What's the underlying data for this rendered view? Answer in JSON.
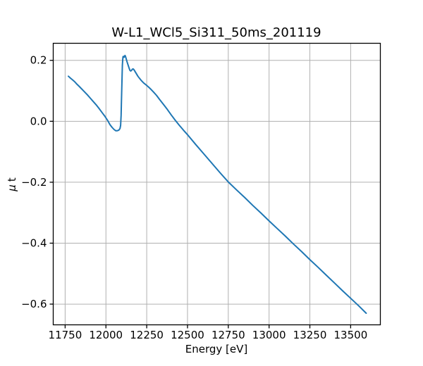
{
  "chart_data": {
    "type": "line",
    "title": "W-L1_WCl5_Si311_50ms_201119",
    "xlabel": "Energy [eV]",
    "ylabel": "μ t",
    "ylabel_symbol": "μ",
    "ylabel_suffix": "t",
    "xlim": [
      11677,
      13682
    ],
    "ylim": [
      -0.668,
      0.256
    ],
    "xticks": [
      11750,
      12000,
      12250,
      12500,
      12750,
      13000,
      13250,
      13500
    ],
    "xtick_labels": [
      "11750",
      "12000",
      "12250",
      "12500",
      "12750",
      "13000",
      "13250",
      "13500"
    ],
    "yticks": [
      0.2,
      0.0,
      -0.2,
      -0.4,
      -0.6
    ],
    "ytick_labels": [
      "0.2",
      "0.0",
      "−0.2",
      "−0.4",
      "−0.6"
    ],
    "grid": true,
    "legend_position": "none",
    "line_color": "#1f77b4",
    "grid_color": "#b0b0b0",
    "axis_color": "#000000",
    "background_color": "#ffffff",
    "series": [
      {
        "name": "mu_t_vs_energy",
        "points": [
          [
            11770,
            0.148
          ],
          [
            11782,
            0.142
          ],
          [
            11795,
            0.136
          ],
          [
            11808,
            0.13
          ],
          [
            11820,
            0.123
          ],
          [
            11835,
            0.115
          ],
          [
            11850,
            0.107
          ],
          [
            11868,
            0.097
          ],
          [
            11886,
            0.087
          ],
          [
            11904,
            0.076
          ],
          [
            11922,
            0.065
          ],
          [
            11940,
            0.054
          ],
          [
            11958,
            0.042
          ],
          [
            11976,
            0.029
          ],
          [
            11994,
            0.016
          ],
          [
            12010,
            0.003
          ],
          [
            12025,
            -0.011
          ],
          [
            12038,
            -0.02
          ],
          [
            12050,
            -0.027
          ],
          [
            12060,
            -0.031
          ],
          [
            12070,
            -0.031
          ],
          [
            12079,
            -0.029
          ],
          [
            12086,
            -0.024
          ],
          [
            12090,
            -0.013
          ],
          [
            12093,
            0.02
          ],
          [
            12095,
            0.06
          ],
          [
            12097,
            0.105
          ],
          [
            12099,
            0.15
          ],
          [
            12101,
            0.185
          ],
          [
            12103,
            0.203
          ],
          [
            12105,
            0.212
          ],
          [
            12108,
            0.213
          ],
          [
            12111,
            0.21
          ],
          [
            12114,
            0.212
          ],
          [
            12117,
            0.216
          ],
          [
            12120,
            0.213
          ],
          [
            12124,
            0.206
          ],
          [
            12129,
            0.196
          ],
          [
            12135,
            0.186
          ],
          [
            12141,
            0.176
          ],
          [
            12147,
            0.167
          ],
          [
            12152,
            0.165
          ],
          [
            12157,
            0.167
          ],
          [
            12162,
            0.171
          ],
          [
            12167,
            0.172
          ],
          [
            12172,
            0.169
          ],
          [
            12179,
            0.163
          ],
          [
            12187,
            0.156
          ],
          [
            12196,
            0.148
          ],
          [
            12206,
            0.141
          ],
          [
            12218,
            0.133
          ],
          [
            12231,
            0.126
          ],
          [
            12245,
            0.12
          ],
          [
            12260,
            0.113
          ],
          [
            12276,
            0.105
          ],
          [
            12292,
            0.096
          ],
          [
            12310,
            0.085
          ],
          [
            12330,
            0.071
          ],
          [
            12352,
            0.056
          ],
          [
            12376,
            0.039
          ],
          [
            12400,
            0.021
          ],
          [
            12424,
            0.004
          ],
          [
            12448,
            -0.012
          ],
          [
            12475,
            -0.029
          ],
          [
            12500,
            -0.044
          ],
          [
            12550,
            -0.076
          ],
          [
            12600,
            -0.107
          ],
          [
            12650,
            -0.138
          ],
          [
            12700,
            -0.169
          ],
          [
            12750,
            -0.199
          ],
          [
            12800,
            -0.225
          ],
          [
            12850,
            -0.25
          ],
          [
            12900,
            -0.276
          ],
          [
            12950,
            -0.301
          ],
          [
            13000,
            -0.327
          ],
          [
            13050,
            -0.352
          ],
          [
            13100,
            -0.377
          ],
          [
            13150,
            -0.403
          ],
          [
            13200,
            -0.428
          ],
          [
            13250,
            -0.454
          ],
          [
            13300,
            -0.479
          ],
          [
            13350,
            -0.505
          ],
          [
            13400,
            -0.53
          ],
          [
            13450,
            -0.556
          ],
          [
            13500,
            -0.581
          ],
          [
            13550,
            -0.606
          ],
          [
            13595,
            -0.63
          ]
        ]
      }
    ]
  }
}
